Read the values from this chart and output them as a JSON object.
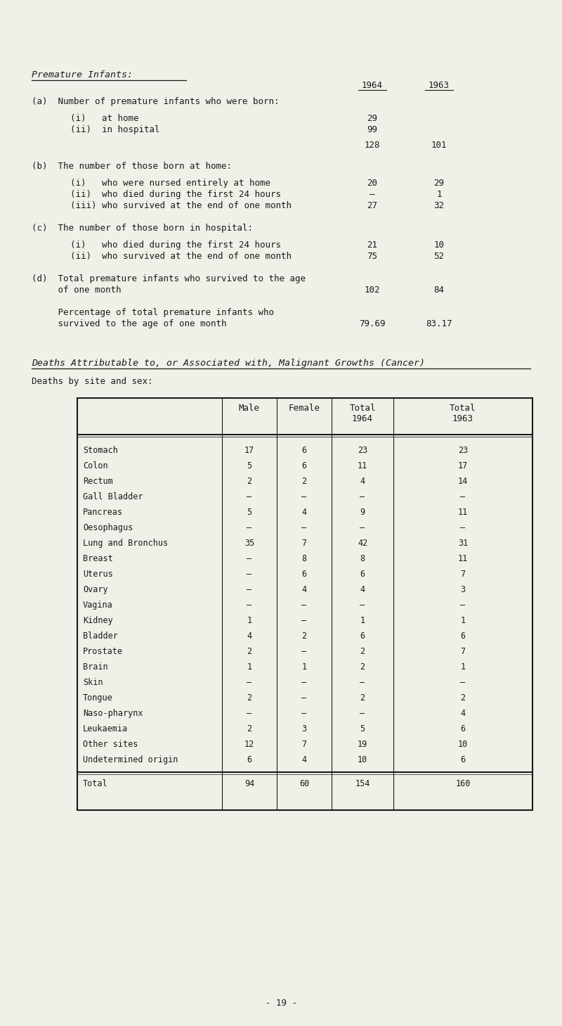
{
  "bg_color": "#f0efe8",
  "text_color": "#1a1a1a",
  "page_number": "- 19 -",
  "section1_title": "Premature Infants:",
  "premature_rows": [
    {
      "label": "(a)  Number of premature infants who were born:",
      "indent": 0,
      "val1964": "",
      "val1963": ""
    },
    {
      "label": "(i)   at home",
      "indent": 1,
      "val1964": "29",
      "val1963": ""
    },
    {
      "label": "(ii)  in hospital",
      "indent": 1,
      "val1964": "99",
      "val1963": ""
    },
    {
      "label": "",
      "indent": 0,
      "val1964": "128",
      "val1963": "101"
    },
    {
      "label": "(b)  The number of those born at home:",
      "indent": 0,
      "val1964": "",
      "val1963": ""
    },
    {
      "label": "(i)   who were nursed entirely at home",
      "indent": 1,
      "val1964": "20",
      "val1963": "29"
    },
    {
      "label": "(ii)  who died during the first 24 hours",
      "indent": 1,
      "val1964": "–",
      "val1963": "1"
    },
    {
      "label": "(iii) who survived at the end of one month",
      "indent": 1,
      "val1964": "27",
      "val1963": "32"
    },
    {
      "label": "(c)  The number of those born in hospital:",
      "indent": 0,
      "val1964": "",
      "val1963": ""
    },
    {
      "label": "(i)   who died during the first 24 hours",
      "indent": 1,
      "val1964": "21",
      "val1963": "10"
    },
    {
      "label": "(ii)  who survived at the end of one month",
      "indent": 1,
      "val1964": "75",
      "val1963": "52"
    },
    {
      "label": "(d)  Total premature infants who survived to the age",
      "indent": 0,
      "val1964": "",
      "val1963": ""
    },
    {
      "label": "     of one month",
      "indent": 0,
      "val1964": "102",
      "val1963": "84"
    },
    {
      "label": "     Percentage of total premature infants who",
      "indent": 0,
      "val1964": "",
      "val1963": ""
    },
    {
      "label": "     survived to the age of one month",
      "indent": 0,
      "val1964": "79.69",
      "val1963": "83.17"
    }
  ],
  "section2_title": "Deaths Attributable to, or Associated with, Malignant Growths (Cancer)",
  "section2_subtitle": "Deaths by site and sex:",
  "table_rows": [
    [
      "Stomach",
      "17",
      "6",
      "23",
      "23"
    ],
    [
      "Colon",
      "5",
      "6",
      "11",
      "17"
    ],
    [
      "Rectum",
      "2",
      "2",
      "4",
      "14"
    ],
    [
      "Gall Bladder",
      "–",
      "–",
      "–",
      "–"
    ],
    [
      "Pancreas",
      "5",
      "4",
      "9",
      "11"
    ],
    [
      "Oesophagus",
      "–",
      "–",
      "–",
      "–"
    ],
    [
      "Lung and Bronchus",
      "35",
      "7",
      "42",
      "31"
    ],
    [
      "Breast",
      "–",
      "8",
      "8",
      "11"
    ],
    [
      "Uterus",
      "–",
      "6",
      "6",
      "7"
    ],
    [
      "Ovary",
      "–",
      "4",
      "4",
      "3"
    ],
    [
      "Vagina",
      "–",
      "–",
      "–",
      "–"
    ],
    [
      "Kidney",
      "1",
      "–",
      "1",
      "1"
    ],
    [
      "Bladder",
      "4",
      "2",
      "6",
      "6"
    ],
    [
      "Prostate",
      "2",
      "–",
      "2",
      "7"
    ],
    [
      "Brain",
      "1",
      "1",
      "2",
      "1"
    ],
    [
      "Skin",
      "–",
      "–",
      "–",
      "–"
    ],
    [
      "Tongue",
      "2",
      "–",
      "2",
      "2"
    ],
    [
      "Naso-pharynx",
      "–",
      "–",
      "–",
      "4"
    ],
    [
      "Leukaemia",
      "2",
      "3",
      "5",
      "6"
    ],
    [
      "Other sites",
      "12",
      "7",
      "19",
      "10"
    ],
    [
      "Undetermined origin",
      "6",
      "4",
      "10",
      "6"
    ]
  ],
  "table_total_row": [
    "Total",
    "94",
    "60",
    "154",
    "160"
  ],
  "font_size": 9.0,
  "title_font_size": 9.5
}
